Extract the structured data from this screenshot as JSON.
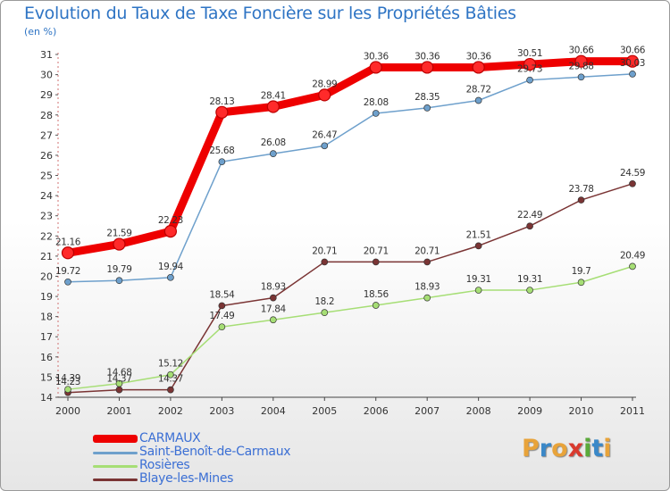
{
  "title": "Evolution du Taux de Taxe Foncière sur les Propriétés Bâties",
  "unit_label": "(en %)",
  "brand": {
    "logo_letters": [
      "P",
      "r",
      "o",
      "x",
      "i",
      "t",
      "i"
    ],
    "logo_colors": [
      "#e8a33a",
      "#3a88c8",
      "#e8a33a",
      "#d93a2e",
      "#5aaa3a",
      "#3a88c8",
      "#e8a33a"
    ]
  },
  "chart_data": {
    "type": "line",
    "title": "Evolution du Taux de Taxe Foncière sur les Propriétés Bâties",
    "ylabel": "(en %)",
    "xlabel": "",
    "categories": [
      "2000",
      "2001",
      "2002",
      "2003",
      "2004",
      "2005",
      "2006",
      "2007",
      "2008",
      "2009",
      "2010",
      "2011"
    ],
    "y_ticks": [
      "14",
      "15",
      "16",
      "17",
      "18",
      "19",
      "20",
      "21",
      "22",
      "23",
      "24",
      "25",
      "26",
      "27",
      "28",
      "29",
      "30",
      "31"
    ],
    "ylim": [
      14,
      31
    ],
    "grid": false,
    "legend_position": "bottom-left",
    "series": [
      {
        "name": "CARMAUX",
        "color": "#ee0000",
        "values": [
          21.16,
          21.59,
          22.23,
          28.13,
          28.41,
          28.99,
          30.36,
          30.36,
          30.36,
          30.51,
          30.66,
          30.66
        ],
        "labels": [
          "21.16",
          "21.59",
          "22.23",
          "28.13",
          "28.41",
          "28.99",
          "30.36",
          "30.36",
          "30.36",
          "30.51",
          "30.66",
          "30.66"
        ]
      },
      {
        "name": "Saint-Benoît-de-Carmaux",
        "color": "#6ea0cc",
        "values": [
          19.72,
          19.79,
          19.94,
          25.68,
          26.08,
          26.47,
          28.08,
          28.35,
          28.72,
          29.73,
          29.88,
          30.03
        ],
        "labels": [
          "19.72",
          "19.79",
          "19.94",
          "25.68",
          "26.08",
          "26.47",
          "28.08",
          "28.35",
          "28.72",
          "29.73",
          "29.88",
          "30.03"
        ]
      },
      {
        "name": "Rosières",
        "color": "#a6de75",
        "values": [
          14.39,
          14.68,
          15.12,
          17.49,
          17.84,
          18.2,
          18.56,
          18.93,
          19.31,
          19.31,
          19.7,
          20.49
        ],
        "labels": [
          "14.39",
          "14.68",
          "15.12",
          "17.49",
          "17.84",
          "18.2",
          "18.56",
          "18.93",
          "19.31",
          "19.31",
          "19.7",
          "20.49"
        ]
      },
      {
        "name": "Blaye-les-Mines",
        "color": "#7a3434",
        "values": [
          14.23,
          14.37,
          14.37,
          18.54,
          18.93,
          20.71,
          20.71,
          20.71,
          21.51,
          22.49,
          23.78,
          24.59
        ],
        "labels": [
          "14.23",
          "14.37",
          "14.37",
          "18.54",
          "18.93",
          "20.71",
          "20.71",
          "20.71",
          "21.51",
          "22.49",
          "23.78",
          "24.59"
        ]
      }
    ]
  }
}
